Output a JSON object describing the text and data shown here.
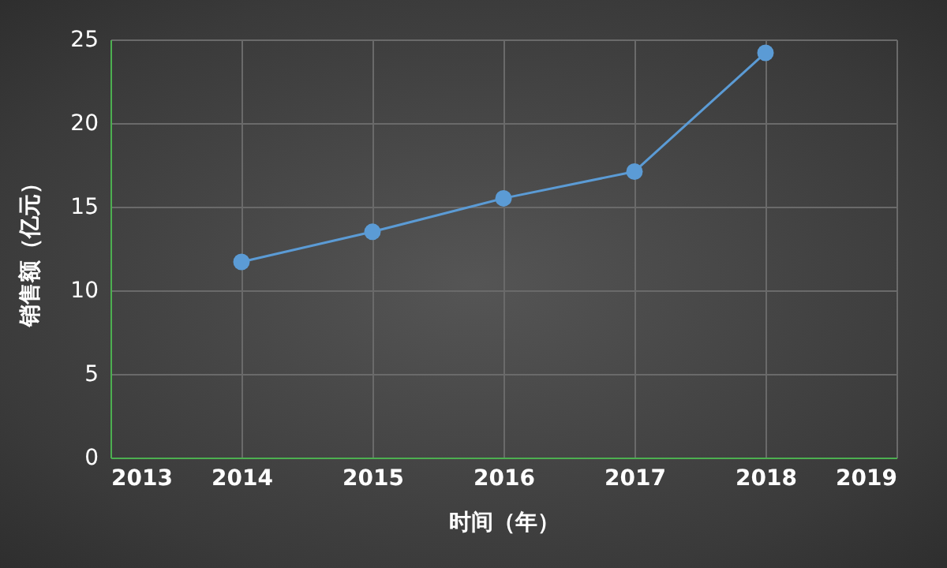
{
  "chart_data": {
    "type": "line",
    "xlabel": "时间（年）",
    "ylabel": "销售额（亿元）",
    "x": [
      2014,
      2015,
      2016,
      2017,
      2018
    ],
    "series": [
      {
        "color": "#5b9bd5",
        "values": [
          11.7,
          13.5,
          15.5,
          17.1,
          24.2
        ]
      }
    ],
    "xlim": [
      2013,
      2019
    ],
    "xticks": [
      2013,
      2014,
      2015,
      2016,
      2017,
      2018,
      2019
    ],
    "ylim": [
      0,
      25
    ],
    "yticks": [
      0,
      5,
      10,
      15,
      20,
      25
    ],
    "grid": true,
    "marker": "circle",
    "legend": false
  }
}
